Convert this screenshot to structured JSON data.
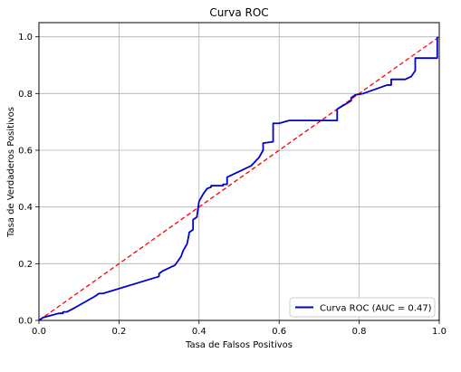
{
  "chart_data": {
    "type": "line",
    "title": "Curva ROC",
    "xlabel": "Tasa de Falsos Positivos",
    "ylabel": "Tasa de Verdaderos Positivos",
    "xlim": [
      0.0,
      1.0
    ],
    "ylim": [
      0.0,
      1.05
    ],
    "grid": true,
    "legend_position": "bottom-right",
    "x_ticks": [
      "0.0",
      "0.2",
      "0.4",
      "0.6",
      "0.8",
      "1.0"
    ],
    "y_ticks": [
      "0.0",
      "0.2",
      "0.4",
      "0.6",
      "0.8",
      "1.0"
    ],
    "series": [
      {
        "name": "Curva ROC (AUC = 0.47)",
        "color": "#0000cc",
        "style": "solid",
        "x": [
          0.0,
          0.01,
          0.05,
          0.06,
          0.06,
          0.07,
          0.09,
          0.14,
          0.15,
          0.15,
          0.16,
          0.3,
          0.3,
          0.31,
          0.34,
          0.355,
          0.36,
          0.37,
          0.375,
          0.375,
          0.385,
          0.385,
          0.395,
          0.395,
          0.4,
          0.41,
          0.42,
          0.43,
          0.43,
          0.46,
          0.46,
          0.47,
          0.47,
          0.53,
          0.55,
          0.56,
          0.56,
          0.585,
          0.585,
          0.6,
          0.625,
          0.745,
          0.745,
          0.78,
          0.78,
          0.79,
          0.81,
          0.87,
          0.88,
          0.88,
          0.915,
          0.93,
          0.94,
          0.94,
          0.995,
          0.995
        ],
        "y": [
          0.0,
          0.01,
          0.025,
          0.025,
          0.03,
          0.03,
          0.045,
          0.085,
          0.095,
          0.095,
          0.095,
          0.155,
          0.165,
          0.175,
          0.195,
          0.225,
          0.245,
          0.27,
          0.305,
          0.31,
          0.32,
          0.355,
          0.365,
          0.37,
          0.42,
          0.445,
          0.465,
          0.47,
          0.475,
          0.475,
          0.48,
          0.48,
          0.505,
          0.545,
          0.575,
          0.6,
          0.625,
          0.63,
          0.695,
          0.695,
          0.705,
          0.705,
          0.745,
          0.775,
          0.785,
          0.795,
          0.8,
          0.83,
          0.83,
          0.85,
          0.85,
          0.86,
          0.88,
          0.925,
          0.925,
          1.0
        ]
      },
      {
        "name": "",
        "color": "#ff0000",
        "style": "dashed",
        "x": [
          0.0,
          1.0
        ],
        "y": [
          0.0,
          1.0
        ]
      }
    ]
  }
}
